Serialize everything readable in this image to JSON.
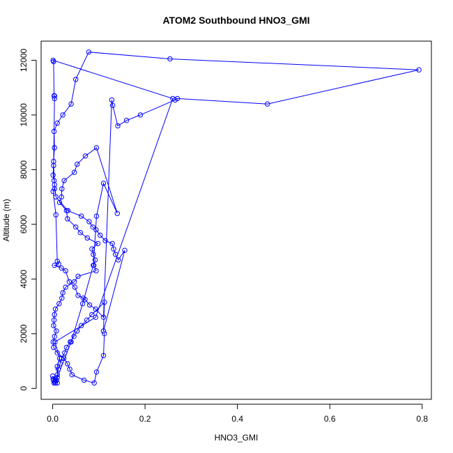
{
  "chart_data": {
    "type": "line",
    "title": "ATOM2 Southbound HNO3_GMI",
    "xlabel": "HNO3_GMI",
    "ylabel": "Altitude (m)",
    "xlim": [
      -0.025,
      0.82
    ],
    "ylim": [
      -400,
      12700
    ],
    "xticks": [
      0.0,
      0.2,
      0.4,
      0.6,
      0.8
    ],
    "xtick_labels": [
      "0.0",
      "0.2",
      "0.4",
      "0.6",
      "0.8"
    ],
    "yticks": [
      0,
      2000,
      4000,
      6000,
      8000,
      10000,
      12000
    ],
    "ytick_labels": [
      "0",
      "2000",
      "4000",
      "6000",
      "8000",
      "10000",
      "12000"
    ],
    "grid": false,
    "legend": "none",
    "marker": "open-circle",
    "color": "#0000ff",
    "series": [
      {
        "x": [
          0.003,
          0.0,
          0.01,
          0.01,
          0.015,
          0.005,
          0.093,
          0.26,
          0.001,
          0.002,
          0.003,
          0.004,
          0.004,
          0.002,
          0.004,
          0.004,
          0.001,
          0.007,
          0.01,
          0.013,
          0.004,
          0.019,
          0.028,
          0.036,
          0.048,
          0.055,
          0.066,
          0.07,
          0.08,
          0.093,
          0.11,
          0.128,
          0.13,
          0.141,
          0.16,
          0.19,
          0.265,
          0.27,
          0.465,
          0.793,
          0.254,
          0.078,
          0.05,
          0.04,
          0.022,
          0.01,
          0.003,
          0.004,
          0.002,
          0.001,
          0.003,
          0.007,
          0.033,
          0.062,
          0.079,
          0.087,
          0.094,
          0.103,
          0.114,
          0.129,
          0.132,
          0.136,
          0.142,
          0.156,
          0.11,
          0.112,
          0.085,
          0.074,
          0.062,
          0.053,
          0.046,
          0.038,
          0.03,
          0.026,
          0.019,
          0.016,
          0.012,
          0.01,
          0.008,
          0.006,
          0.004,
          0.002,
          0.001,
          0.01,
          0.04,
          0.065,
          0.088,
          0.095,
          0.11,
          0.14,
          0.095,
          0.071,
          0.053,
          0.047,
          0.025,
          0.02,
          0.019,
          0.015,
          0.03,
          0.032,
          0.05,
          0.06,
          0.075,
          0.098,
          0.085,
          0.088,
          0.092,
          0.089,
          0.094,
          0.055,
          0.047,
          0.028,
          0.022,
          0.02,
          0.014,
          0.006,
          0.004,
          0.003,
          0.002,
          0.008,
          0.004,
          0.001,
          0.002,
          0.01,
          0.024,
          0.032,
          0.037,
          0.042,
          0.068,
          0.09,
          0.095,
          0.11,
          0.112
        ],
        "y": [
          200,
          450,
          200,
          800,
          1100,
          1700,
          2600,
          10600,
          12000,
          11950,
          10700,
          10700,
          10600,
          8150,
          7450,
          7300,
          7200,
          6350,
          4650,
          4550,
          4500,
          4400,
          4300,
          3900,
          3700,
          3400,
          3300,
          3250,
          3050,
          2900,
          2600,
          10550,
          10350,
          9600,
          9800,
          10000,
          10550,
          10600,
          10400,
          11650,
          12050,
          12300,
          11300,
          10400,
          10000,
          9700,
          9400,
          8800,
          8300,
          7800,
          7600,
          7000,
          6500,
          6300,
          6100,
          5900,
          5800,
          5600,
          5400,
          5300,
          5100,
          4900,
          4700,
          5050,
          2100,
          3150,
          2700,
          2500,
          2300,
          2100,
          1900,
          1700,
          1500,
          1300,
          1100,
          900,
          700,
          500,
          300,
          200,
          250,
          300,
          350,
          400,
          1700,
          3100,
          4500,
          6300,
          7500,
          6400,
          8800,
          8500,
          8200,
          7900,
          7600,
          7300,
          7000,
          6800,
          6500,
          6200,
          5900,
          5700,
          5500,
          5300,
          5100,
          4900,
          4700,
          4500,
          4300,
          4100,
          3900,
          3700,
          3500,
          3300,
          3100,
          2900,
          2700,
          2500,
          2300,
          2100,
          1900,
          1700,
          1500,
          1300,
          1100,
          900,
          700,
          500,
          300,
          200,
          600,
          1200,
          2000
        ]
      }
    ]
  }
}
